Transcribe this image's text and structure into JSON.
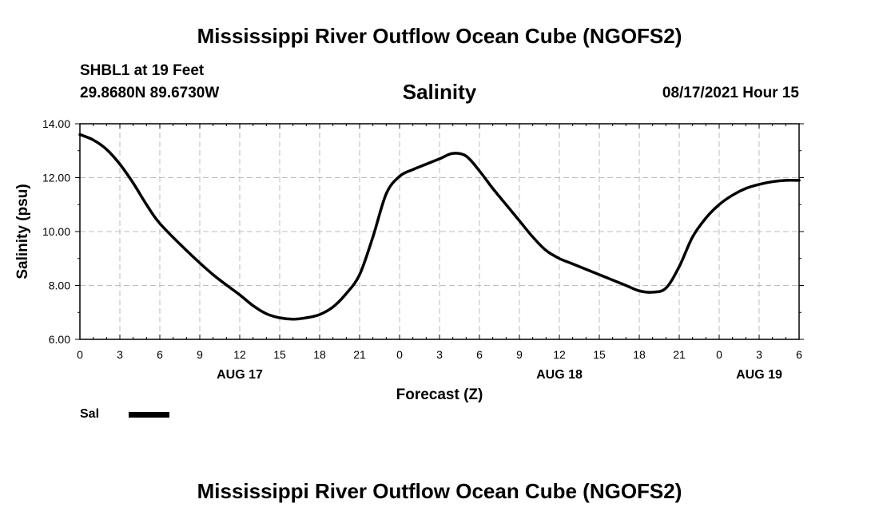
{
  "header": {
    "title": "Mississippi River Outflow Ocean Cube (NGOFS2)",
    "station": "SHBL1 at 19 Feet",
    "coords": "29.8680N  89.6730W",
    "variable": "Salinity",
    "forecast_time": "08/17/2021 Hour 15"
  },
  "footer": {
    "title": "Mississippi River Outflow Ocean Cube (NGOFS2)"
  },
  "legend": {
    "label": "Sal",
    "color": "#000000"
  },
  "chart_data": {
    "type": "line",
    "title": "Salinity",
    "xlabel": "Forecast (Z)",
    "ylabel": "Salinity (psu)",
    "xlim": [
      0,
      54
    ],
    "ylim": [
      6,
      14
    ],
    "yticks": [
      6,
      8,
      10,
      12,
      14
    ],
    "ytick_labels": [
      "6.00",
      "8.00",
      "10.00",
      "12.00",
      "14.00"
    ],
    "xticks": [
      0,
      3,
      6,
      9,
      12,
      15,
      18,
      21,
      24,
      27,
      30,
      33,
      36,
      39,
      42,
      45,
      48,
      51,
      54
    ],
    "xtick_labels": [
      "0",
      "3",
      "6",
      "9",
      "12",
      "15",
      "18",
      "21",
      "0",
      "3",
      "6",
      "9",
      "12",
      "15",
      "18",
      "21",
      "0",
      "3",
      "6"
    ],
    "date_labels": [
      {
        "x": 12,
        "label": "AUG 17"
      },
      {
        "x": 36,
        "label": "AUG 18"
      },
      {
        "x": 51,
        "label": "AUG 19"
      }
    ],
    "grid": true,
    "series": [
      {
        "name": "Sal",
        "color": "#000000",
        "x": [
          0,
          1,
          2,
          3,
          4,
          5,
          6,
          8,
          10,
          12,
          13,
          14,
          15,
          16,
          17,
          18,
          19,
          20,
          21,
          22,
          23,
          24,
          25,
          26,
          27,
          28,
          29,
          30,
          31,
          32,
          33,
          34,
          35,
          36,
          37,
          38,
          39,
          40,
          41,
          42,
          43,
          44,
          45,
          46,
          47,
          48,
          49,
          50,
          51,
          52,
          53,
          54
        ],
        "values": [
          13.6,
          13.4,
          13.05,
          12.5,
          11.8,
          11.0,
          10.3,
          9.3,
          8.4,
          7.65,
          7.25,
          6.95,
          6.8,
          6.75,
          6.8,
          6.92,
          7.2,
          7.7,
          8.4,
          9.8,
          11.4,
          12.05,
          12.3,
          12.5,
          12.7,
          12.9,
          12.8,
          12.25,
          11.6,
          11.0,
          10.4,
          9.8,
          9.3,
          9.0,
          8.8,
          8.6,
          8.4,
          8.2,
          8.0,
          7.8,
          7.75,
          7.9,
          8.7,
          9.8,
          10.5,
          11.0,
          11.35,
          11.6,
          11.75,
          11.85,
          11.9,
          11.9
        ]
      }
    ]
  }
}
